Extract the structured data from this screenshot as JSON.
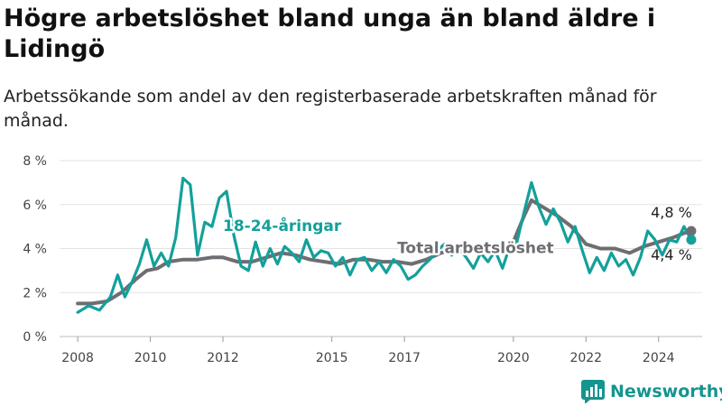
{
  "title": "Högre arbetslöshet bland unga än bland äldre i Lidingö",
  "subtitle": "Arbetssökande som andel av den registerbaserade arbetskraften månad för månad.",
  "brand": {
    "name": "Newsworthy",
    "icon": "bar-chart-logo-icon",
    "color": "#14958f"
  },
  "chart_data": {
    "type": "line",
    "ylim": [
      0,
      8
    ],
    "yticks": [
      0,
      2,
      4,
      6,
      8
    ],
    "ytick_labels": [
      "0 %",
      "2 %",
      "4 %",
      "6 %",
      "8 %"
    ],
    "xlim": [
      2007.5,
      2025.2
    ],
    "xticks": [
      2008,
      2010,
      2012,
      2015,
      2017,
      2020,
      2022,
      2024
    ],
    "xtick_labels": [
      "2008",
      "2010",
      "2012",
      "2015",
      "2017",
      "2020",
      "2022",
      "2024"
    ],
    "grid": true,
    "series": [
      {
        "name": "Total arbetslöshet",
        "color": "#6e6e72",
        "end_label": "4,8 %",
        "points": [
          [
            2008.0,
            1.5
          ],
          [
            2008.4,
            1.5
          ],
          [
            2008.8,
            1.6
          ],
          [
            2009.2,
            2.0
          ],
          [
            2009.6,
            2.6
          ],
          [
            2009.9,
            3.0
          ],
          [
            2010.2,
            3.1
          ],
          [
            2010.5,
            3.4
          ],
          [
            2010.9,
            3.5
          ],
          [
            2011.3,
            3.5
          ],
          [
            2011.7,
            3.6
          ],
          [
            2012.0,
            3.6
          ],
          [
            2012.4,
            3.4
          ],
          [
            2012.8,
            3.4
          ],
          [
            2013.2,
            3.6
          ],
          [
            2013.6,
            3.8
          ],
          [
            2014.0,
            3.7
          ],
          [
            2014.4,
            3.5
          ],
          [
            2014.8,
            3.4
          ],
          [
            2015.2,
            3.3
          ],
          [
            2015.6,
            3.5
          ],
          [
            2016.0,
            3.5
          ],
          [
            2016.4,
            3.4
          ],
          [
            2016.8,
            3.4
          ],
          [
            2017.2,
            3.3
          ],
          [
            2017.6,
            3.5
          ],
          [
            2018.0,
            3.8
          ],
          [
            2018.4,
            4.0
          ],
          [
            2018.8,
            4.1
          ],
          [
            2019.2,
            4.0
          ],
          [
            2019.6,
            4.1
          ],
          [
            2020.0,
            4.3
          ],
          [
            2020.3,
            5.5
          ],
          [
            2020.5,
            6.2
          ],
          [
            2020.8,
            5.9
          ],
          [
            2021.2,
            5.5
          ],
          [
            2021.6,
            5.0
          ],
          [
            2022.0,
            4.2
          ],
          [
            2022.4,
            4.0
          ],
          [
            2022.8,
            4.0
          ],
          [
            2023.2,
            3.8
          ],
          [
            2023.6,
            4.1
          ],
          [
            2024.0,
            4.3
          ],
          [
            2024.4,
            4.5
          ],
          [
            2024.7,
            4.7
          ],
          [
            2024.9,
            4.8
          ]
        ]
      },
      {
        "name": "18-24-åringar",
        "color": "#14a09b",
        "end_label": "4,4 %",
        "points": [
          [
            2008.0,
            1.1
          ],
          [
            2008.3,
            1.4
          ],
          [
            2008.6,
            1.2
          ],
          [
            2008.9,
            1.8
          ],
          [
            2009.1,
            2.8
          ],
          [
            2009.3,
            1.8
          ],
          [
            2009.5,
            2.5
          ],
          [
            2009.7,
            3.3
          ],
          [
            2009.9,
            4.4
          ],
          [
            2010.1,
            3.2
          ],
          [
            2010.3,
            3.8
          ],
          [
            2010.5,
            3.2
          ],
          [
            2010.7,
            4.5
          ],
          [
            2010.9,
            7.2
          ],
          [
            2011.1,
            6.9
          ],
          [
            2011.3,
            3.7
          ],
          [
            2011.5,
            5.2
          ],
          [
            2011.7,
            5.0
          ],
          [
            2011.9,
            6.3
          ],
          [
            2012.1,
            6.6
          ],
          [
            2012.3,
            4.6
          ],
          [
            2012.5,
            3.2
          ],
          [
            2012.7,
            3.0
          ],
          [
            2012.9,
            4.3
          ],
          [
            2013.1,
            3.2
          ],
          [
            2013.3,
            4.0
          ],
          [
            2013.5,
            3.3
          ],
          [
            2013.7,
            4.1
          ],
          [
            2013.9,
            3.8
          ],
          [
            2014.1,
            3.4
          ],
          [
            2014.3,
            4.4
          ],
          [
            2014.5,
            3.6
          ],
          [
            2014.7,
            3.9
          ],
          [
            2014.9,
            3.8
          ],
          [
            2015.1,
            3.2
          ],
          [
            2015.3,
            3.6
          ],
          [
            2015.5,
            2.8
          ],
          [
            2015.7,
            3.5
          ],
          [
            2015.9,
            3.6
          ],
          [
            2016.1,
            3.0
          ],
          [
            2016.3,
            3.4
          ],
          [
            2016.5,
            2.9
          ],
          [
            2016.7,
            3.5
          ],
          [
            2016.9,
            3.2
          ],
          [
            2017.1,
            2.6
          ],
          [
            2017.3,
            2.8
          ],
          [
            2017.5,
            3.2
          ],
          [
            2017.7,
            3.5
          ],
          [
            2017.9,
            3.9
          ],
          [
            2018.1,
            4.2
          ],
          [
            2018.3,
            3.7
          ],
          [
            2018.5,
            4.0
          ],
          [
            2018.7,
            3.6
          ],
          [
            2018.9,
            3.1
          ],
          [
            2019.1,
            3.8
          ],
          [
            2019.3,
            3.4
          ],
          [
            2019.5,
            3.9
          ],
          [
            2019.7,
            3.1
          ],
          [
            2019.9,
            4.1
          ],
          [
            2020.1,
            4.3
          ],
          [
            2020.3,
            5.7
          ],
          [
            2020.5,
            7.0
          ],
          [
            2020.7,
            5.9
          ],
          [
            2020.9,
            5.1
          ],
          [
            2021.1,
            5.8
          ],
          [
            2021.3,
            5.2
          ],
          [
            2021.5,
            4.3
          ],
          [
            2021.7,
            5.0
          ],
          [
            2021.9,
            3.9
          ],
          [
            2022.1,
            2.9
          ],
          [
            2022.3,
            3.6
          ],
          [
            2022.5,
            3.0
          ],
          [
            2022.7,
            3.8
          ],
          [
            2022.9,
            3.2
          ],
          [
            2023.1,
            3.5
          ],
          [
            2023.3,
            2.8
          ],
          [
            2023.5,
            3.6
          ],
          [
            2023.7,
            4.8
          ],
          [
            2023.9,
            4.4
          ],
          [
            2024.1,
            3.7
          ],
          [
            2024.3,
            4.4
          ],
          [
            2024.5,
            4.3
          ],
          [
            2024.7,
            5.0
          ],
          [
            2024.9,
            4.4
          ]
        ]
      }
    ],
    "annotations": [
      {
        "text": "18-24-åringar",
        "x": 2012.0,
        "y": 4.8,
        "color": "#14a09b",
        "series": "18-24-åringar"
      },
      {
        "text": "Total arbetslöshet",
        "x": 2016.8,
        "y": 3.8,
        "color": "#6e6e72",
        "series": "Total arbetslöshet"
      }
    ]
  }
}
